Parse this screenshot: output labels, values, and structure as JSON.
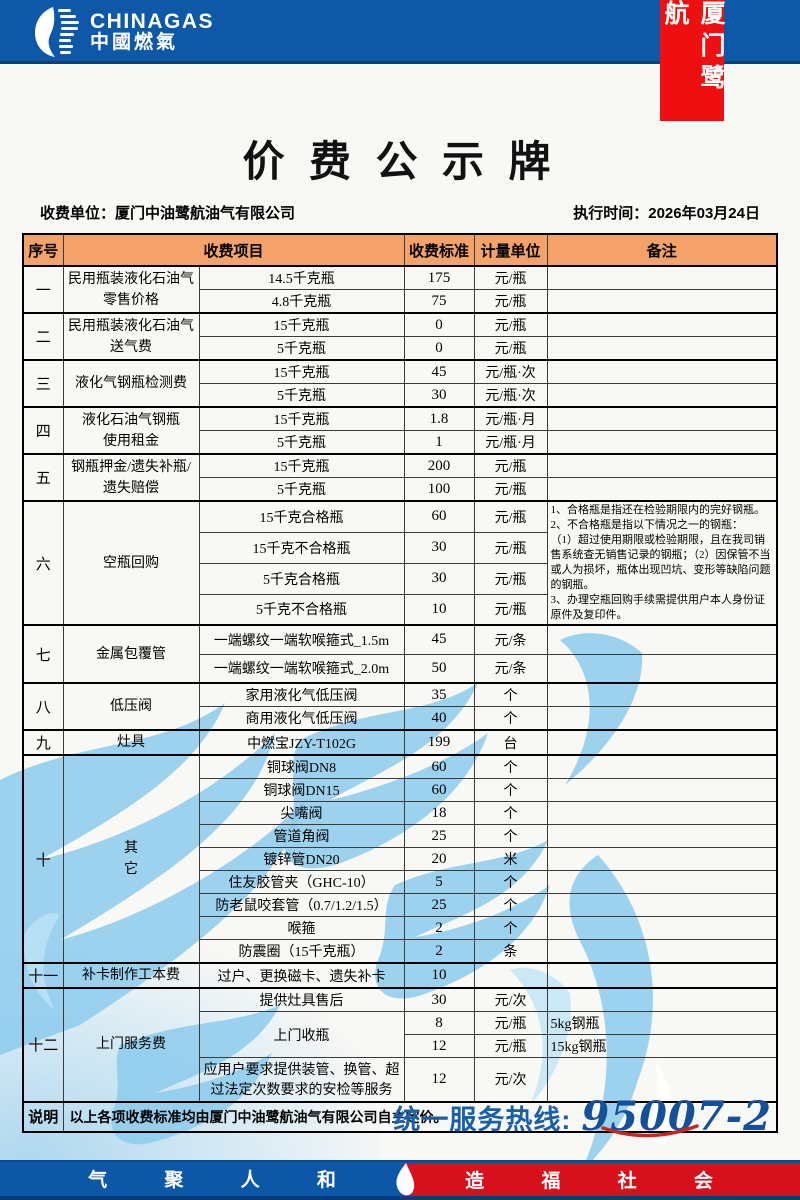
{
  "brand": {
    "name_en": "CHINAGAS",
    "name_cn": "中國燃氣",
    "ribbon": "厦门鹭航"
  },
  "title": "价 费 公 示 牌",
  "meta": {
    "unit_label": "收费单位：",
    "unit_value": "厦门中油鹭航油气有限公司",
    "date_label": "执行时间：",
    "date_value": "2026年03月24日"
  },
  "table": {
    "headers": [
      "序号",
      "收费项目",
      "收费标准",
      "计量单位",
      "备注"
    ],
    "sections": [
      {
        "no": "一",
        "category": "民用瓶装液化石油气\n零售价格",
        "rows": [
          {
            "item": "14.5千克瓶",
            "price": "175",
            "unit": "元/瓶"
          },
          {
            "item": "4.8千克瓶",
            "price": "75",
            "unit": "元/瓶"
          }
        ]
      },
      {
        "no": "二",
        "category": "民用瓶装液化石油气\n送气费",
        "rows": [
          {
            "item": "15千克瓶",
            "price": "0",
            "unit": "元/瓶"
          },
          {
            "item": "5千克瓶",
            "price": "0",
            "unit": "元/瓶"
          }
        ]
      },
      {
        "no": "三",
        "category": "液化气钢瓶检测费",
        "rows": [
          {
            "item": "15千克瓶",
            "price": "45",
            "unit": "元/瓶·次"
          },
          {
            "item": "5千克瓶",
            "price": "30",
            "unit": "元/瓶·次"
          }
        ]
      },
      {
        "no": "四",
        "category": "液化石油气钢瓶\n使用租金",
        "rows": [
          {
            "item": "15千克瓶",
            "price": "1.8",
            "unit": "元/瓶·月"
          },
          {
            "item": "5千克瓶",
            "price": "1",
            "unit": "元/瓶·月"
          }
        ]
      },
      {
        "no": "五",
        "category": "钢瓶押金/遗失补瓶/\n遗失赔偿",
        "rows": [
          {
            "item": "15千克瓶",
            "price": "200",
            "unit": "元/瓶"
          },
          {
            "item": "5千克瓶",
            "price": "100",
            "unit": "元/瓶"
          }
        ]
      },
      {
        "no": "六",
        "category": "空瓶回购",
        "rh": 29,
        "note": "1、合格瓶是指还在检验期限内的完好钢瓶。\n2、不合格瓶是指以下情况之一的钢瓶：\n（1）超过使用期限或检验期限，且在我司销售系统查无销售记录的钢瓶；（2）因保管不当或人为损坏，瓶体出现凹坑、变形等缺陷问题的钢瓶。\n3、办理空瓶回购手续需提供用户本人身份证原件及复印件。",
        "rows": [
          {
            "item": "15千克合格瓶",
            "price": "60",
            "unit": "元/瓶"
          },
          {
            "item": "15千克不合格瓶",
            "price": "30",
            "unit": "元/瓶"
          },
          {
            "item": "5千克合格瓶",
            "price": "30",
            "unit": "元/瓶"
          },
          {
            "item": "5千克不合格瓶",
            "price": "10",
            "unit": "元/瓶"
          }
        ]
      },
      {
        "no": "七",
        "category": "金属包覆管",
        "rh": 29,
        "rows": [
          {
            "item": "一端螺纹一端软喉箍式_1.5m",
            "price": "45",
            "unit": "元/条"
          },
          {
            "item": "一端螺纹一端软喉箍式_2.0m",
            "price": "50",
            "unit": "元/条"
          }
        ]
      },
      {
        "no": "八",
        "category": "低压阀",
        "rows": [
          {
            "item": "家用液化气低压阀",
            "price": "35",
            "unit": "个"
          },
          {
            "item": "商用液化气低压阀",
            "price": "40",
            "unit": "个"
          }
        ]
      },
      {
        "no": "九",
        "category": "灶具",
        "rows": [
          {
            "item": "中燃宝JZY-T102G",
            "price": "199",
            "unit": "台"
          }
        ]
      },
      {
        "no": "十",
        "category": "其\n它",
        "rh": 22,
        "rows": [
          {
            "item": "铜球阀DN8",
            "price": "60",
            "unit": "个"
          },
          {
            "item": "铜球阀DN15",
            "price": "60",
            "unit": "个"
          },
          {
            "item": "尖嘴阀",
            "price": "18",
            "unit": "个"
          },
          {
            "item": "管道角阀",
            "price": "25",
            "unit": "个"
          },
          {
            "item": "镀锌管DN20",
            "price": "20",
            "unit": "米"
          },
          {
            "item": "住友胶管夹（GHC-10）",
            "price": "5",
            "unit": "个"
          },
          {
            "item": "防老鼠咬套管（0.7/1.2/1.5）",
            "price": "25",
            "unit": "个"
          },
          {
            "item": "喉箍",
            "price": "2",
            "unit": "个"
          },
          {
            "item": "防震圈（15千克瓶）",
            "price": "2",
            "unit": "条"
          }
        ]
      },
      {
        "no": "十一",
        "category": "补卡制作工本费",
        "rows": [
          {
            "item": "过户、更换磁卡、遗失补卡",
            "price": "10",
            "unit": ""
          }
        ]
      },
      {
        "no": "十二",
        "category": "上门服务费",
        "rows": [
          {
            "item": "提供灶具售后",
            "price": "30",
            "unit": "元/次"
          },
          {
            "item": "上门收瓶",
            "item_rowspan": 2,
            "price": "8",
            "unit": "元/瓶",
            "note": "5kg钢瓶"
          },
          {
            "price": "12",
            "unit": "元/瓶",
            "note": "15kg钢瓶"
          },
          {
            "item": "应用户要求提供装管、换管、超过法定次数要求的安检等服务",
            "price": "12",
            "unit": "元/次",
            "rh": 44
          }
        ]
      }
    ],
    "footer_label": "说明",
    "footer_text": "以上各项收费标准均由厦门中油鹭航油气有限公司自主定价。"
  },
  "hotline": {
    "label": "统一服务热线:",
    "number": "95007-2"
  },
  "footer": {
    "left": "气 聚 人 和",
    "right": "造 福 社 会"
  },
  "colors": {
    "bar_blue": "#0d59a7",
    "header_orange": "#f3a269",
    "ribbon_red": "#ee1010",
    "footer_red": "#d7111b",
    "hotline_blue": "#1a5fa9",
    "watermark_blue": "#8ccbec"
  }
}
